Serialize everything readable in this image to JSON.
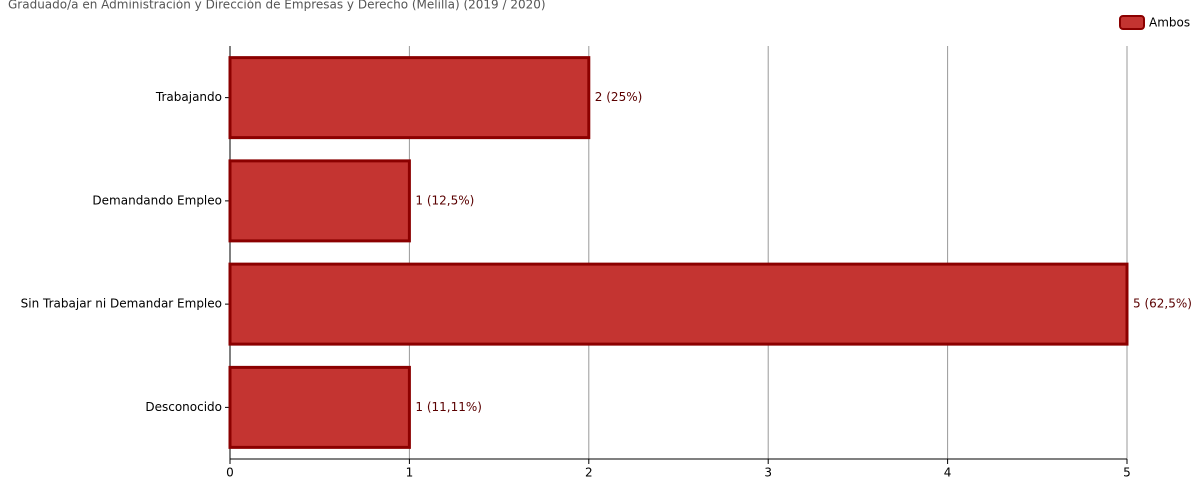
{
  "chart_data": {
    "type": "bar",
    "orientation": "horizontal",
    "title": "Graduado/a en Administración y Dirección de Empresas y Derecho (Melilla) (2019 / 2020)",
    "categories": [
      "Trabajando",
      "Demandando Empleo",
      "Sin Trabajar ni Demandar Empleo",
      "Desconocido"
    ],
    "series": [
      {
        "name": "Ambos",
        "color": "#c43431",
        "values": [
          2,
          1,
          5,
          1
        ],
        "value_labels": [
          "2 (25%)",
          "1 (12,5%)",
          "5 (62,5%)",
          "1 (11,11%)"
        ]
      }
    ],
    "xlim": [
      0,
      5
    ],
    "xticks": [
      0,
      1,
      2,
      3,
      4,
      5
    ],
    "grid": true,
    "legend": "top-right"
  }
}
